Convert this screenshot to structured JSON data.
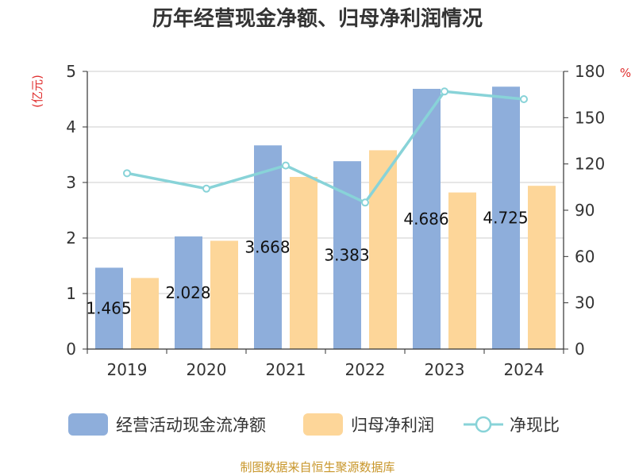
{
  "chart_data": {
    "type": "bar",
    "title": "历年经营现金净额、归母净利润情况",
    "categories": [
      "2019",
      "2020",
      "2021",
      "2022",
      "2023",
      "2024"
    ],
    "y_left_unit": "(亿元)",
    "y_right_unit": "%",
    "y_left_ticks": [
      "0",
      "1",
      "2",
      "3",
      "4",
      "5"
    ],
    "y_right_ticks": [
      "0",
      "30",
      "60",
      "90",
      "120",
      "150",
      "180"
    ],
    "ylim_left": [
      0,
      5
    ],
    "ylim_right": [
      0,
      180
    ],
    "series": [
      {
        "name": "经营活动现金流净额",
        "type": "bar",
        "axis": "left",
        "color": "#8eaedb",
        "values": [
          1.465,
          2.028,
          3.668,
          3.383,
          4.686,
          4.725
        ],
        "labels": [
          "1.465",
          "2.028",
          "3.668",
          "3.383",
          "4.686",
          "4.725"
        ]
      },
      {
        "name": "归母净利润",
        "type": "bar",
        "axis": "left",
        "color": "#fdd699",
        "values": [
          1.28,
          1.95,
          3.1,
          3.58,
          2.82,
          2.94
        ]
      },
      {
        "name": "净现比",
        "type": "line",
        "axis": "right",
        "color": "#88d3d8",
        "values": [
          114,
          104,
          119,
          95,
          167,
          162
        ]
      }
    ],
    "source": "制图数据来自恒生聚源数据库"
  }
}
